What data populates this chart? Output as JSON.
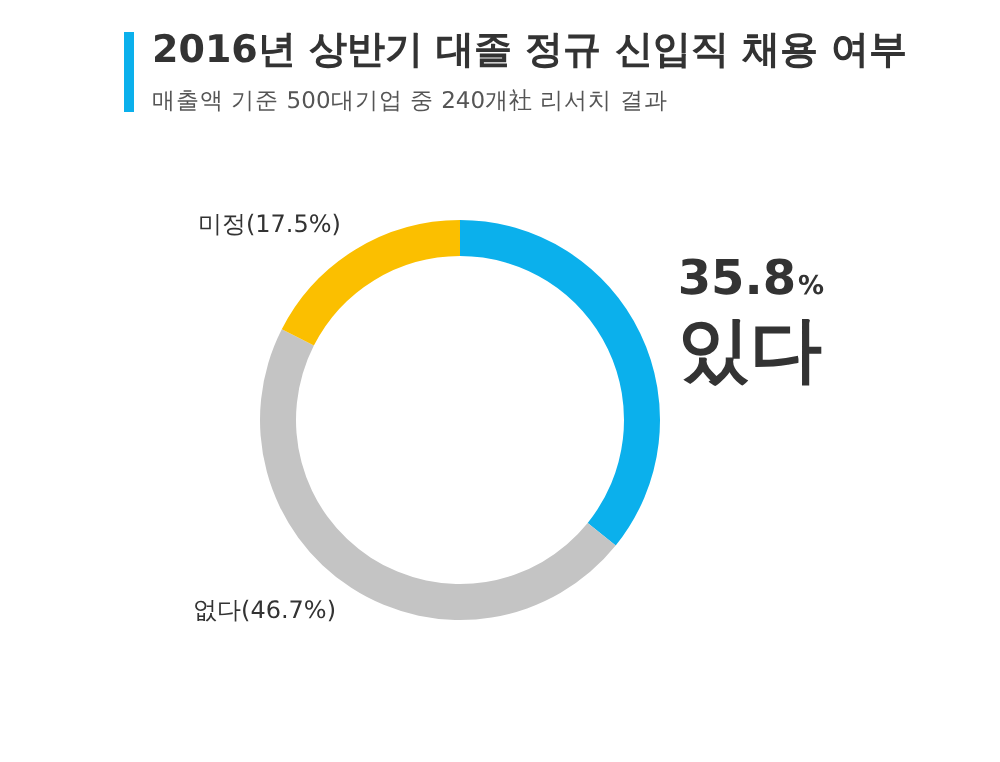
{
  "chart_data": {
    "type": "donut",
    "title": "2016년 상반기 대졸 정규 신입직 채용 여부",
    "subtitle": "매출액 기준 500대기업 중 240개社 리서치 결과",
    "categories": [
      "있다",
      "없다",
      "미정"
    ],
    "values": [
      35.8,
      46.7,
      17.5
    ],
    "colors": [
      "#0bb0ec",
      "#c4c4c4",
      "#fbbf00"
    ],
    "value_labels": [
      "35.8%",
      "(46.7%)",
      "(17.5%)"
    ],
    "legend": false
  }
}
